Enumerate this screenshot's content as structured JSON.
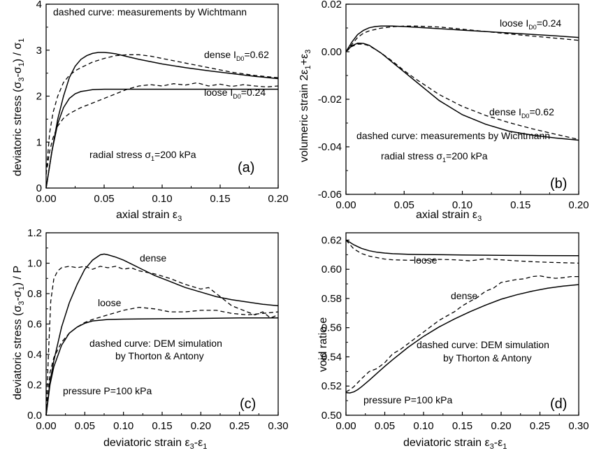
{
  "chart_data": [
    {
      "id": "a",
      "type": "line",
      "panel_label": "(a)",
      "xlabel": "axial strain ε₃",
      "ylabel": "deviatoric stress (σ₃-σ₁) / σ₁",
      "xlim": [
        0,
        0.2
      ],
      "ylim": [
        0,
        4
      ],
      "xticks": [
        "0.00",
        "0.05",
        "0.10",
        "0.15",
        "0.20"
      ],
      "yticks": [
        "0",
        "1",
        "2",
        "3",
        "4"
      ],
      "grid": false,
      "annotations": [
        "dashed curve:  measurements by Wichtmann",
        "dense I_D0=0.62",
        "loose I_D0=0.24",
        "radial stress σ₁=200 kPa"
      ],
      "series": [
        {
          "style": "solid",
          "x": [
            0,
            0.005,
            0.01,
            0.015,
            0.02,
            0.025,
            0.03,
            0.035,
            0.04,
            0.045,
            0.05,
            0.055,
            0.06,
            0.07,
            0.08,
            0.1,
            0.12,
            0.14,
            0.16,
            0.18,
            0.2
          ],
          "y": [
            0,
            0.8,
            1.5,
            2.0,
            2.4,
            2.65,
            2.8,
            2.88,
            2.93,
            2.95,
            2.95,
            2.94,
            2.92,
            2.86,
            2.8,
            2.7,
            2.62,
            2.55,
            2.49,
            2.43,
            2.38
          ]
        },
        {
          "style": "solid",
          "x": [
            0,
            0.005,
            0.01,
            0.015,
            0.02,
            0.025,
            0.03,
            0.035,
            0.04,
            0.05,
            0.06,
            0.08,
            0.1,
            0.15,
            0.2
          ],
          "y": [
            0,
            0.8,
            1.4,
            1.75,
            1.95,
            2.05,
            2.1,
            2.12,
            2.14,
            2.15,
            2.15,
            2.15,
            2.15,
            2.15,
            2.15
          ]
        },
        {
          "style": "dashed",
          "x": [
            0,
            0.003,
            0.006,
            0.01,
            0.015,
            0.02,
            0.025,
            0.03,
            0.035,
            0.04,
            0.05,
            0.06,
            0.07,
            0.08,
            0.09,
            0.1,
            0.12,
            0.14,
            0.16,
            0.18,
            0.2
          ],
          "y": [
            0.3,
            1.2,
            1.65,
            2.0,
            2.3,
            2.45,
            2.55,
            2.62,
            2.68,
            2.74,
            2.82,
            2.88,
            2.9,
            2.9,
            2.87,
            2.82,
            2.72,
            2.62,
            2.52,
            2.45,
            2.4
          ]
        },
        {
          "style": "dashed",
          "x": [
            0,
            0.003,
            0.006,
            0.01,
            0.015,
            0.02,
            0.03,
            0.04,
            0.05,
            0.06,
            0.07,
            0.08,
            0.09,
            0.1,
            0.11,
            0.12,
            0.13,
            0.14,
            0.15,
            0.16,
            0.17,
            0.18,
            0.19,
            0.2
          ],
          "y": [
            0.3,
            0.8,
            1.1,
            1.35,
            1.52,
            1.62,
            1.75,
            1.85,
            1.95,
            2.05,
            2.15,
            2.22,
            2.25,
            2.22,
            2.27,
            2.24,
            2.29,
            2.22,
            2.26,
            2.21,
            2.25,
            2.22,
            2.2,
            2.22
          ]
        }
      ]
    },
    {
      "id": "b",
      "type": "line",
      "panel_label": "(b)",
      "xlabel": "axial strain ε₃",
      "ylabel": "volumeric strain 2ε₁+ε₃",
      "xlim": [
        0,
        0.2
      ],
      "ylim": [
        -0.06,
        0.02
      ],
      "xticks": [
        "0.00",
        "0.05",
        "0.10",
        "0.15",
        "0.20"
      ],
      "yticks": [
        "-0.06",
        "-0.04",
        "-0.02",
        "0.00",
        "0.02"
      ],
      "grid": false,
      "annotations": [
        "loose I_D0=0.24",
        "dense I_D0=0.62",
        "dashed curve:  measurements by Wichtmann",
        "radial stress σ₁=200 kPa"
      ],
      "series": [
        {
          "style": "solid",
          "x": [
            0,
            0.005,
            0.01,
            0.015,
            0.02,
            0.025,
            0.03,
            0.04,
            0.05,
            0.06,
            0.08,
            0.1,
            0.12,
            0.14,
            0.16,
            0.18,
            0.2
          ],
          "y": [
            0,
            0.004,
            0.0072,
            0.009,
            0.0101,
            0.0106,
            0.0108,
            0.0108,
            0.0106,
            0.0103,
            0.0097,
            0.0091,
            0.0085,
            0.0079,
            0.0073,
            0.0067,
            0.006
          ]
        },
        {
          "style": "dashed",
          "x": [
            0,
            0.005,
            0.01,
            0.015,
            0.02,
            0.03,
            0.04,
            0.05,
            0.06,
            0.08,
            0.1,
            0.12,
            0.14,
            0.16,
            0.18,
            0.2
          ],
          "y": [
            0,
            0.003,
            0.006,
            0.0078,
            0.0088,
            0.0099,
            0.0105,
            0.0108,
            0.0108,
            0.0104,
            0.0095,
            0.0085,
            0.0075,
            0.0066,
            0.0057,
            0.0048
          ]
        },
        {
          "style": "solid",
          "x": [
            0,
            0.005,
            0.01,
            0.015,
            0.02,
            0.03,
            0.04,
            0.05,
            0.06,
            0.08,
            0.1,
            0.12,
            0.14,
            0.16,
            0.18,
            0.2
          ],
          "y": [
            0,
            0.0025,
            0.0036,
            0.0035,
            0.0027,
            -0.0005,
            -0.0045,
            -0.0085,
            -0.0125,
            -0.0205,
            -0.0265,
            -0.0305,
            -0.0334,
            -0.0351,
            -0.0363,
            -0.0372
          ]
        },
        {
          "style": "dashed",
          "x": [
            0,
            0.005,
            0.01,
            0.015,
            0.02,
            0.03,
            0.04,
            0.05,
            0.06,
            0.08,
            0.1,
            0.12,
            0.14,
            0.16,
            0.18,
            0.2
          ],
          "y": [
            0,
            0.0022,
            0.0032,
            0.0032,
            0.0025,
            -0.0005,
            -0.004,
            -0.008,
            -0.0115,
            -0.018,
            -0.023,
            -0.0268,
            -0.0298,
            -0.0324,
            -0.0347,
            -0.0369
          ]
        }
      ]
    },
    {
      "id": "c",
      "type": "line",
      "panel_label": "(c)",
      "xlabel": "deviatoric strain ε₃-ε₁",
      "ylabel": "deviatoric stress (σ₃-σ₁) / P",
      "xlim": [
        0,
        0.3
      ],
      "ylim": [
        0,
        1.2
      ],
      "xticks": [
        "0.00",
        "0.05",
        "0.10",
        "0.15",
        "0.20",
        "0.25",
        "0.30"
      ],
      "yticks": [
        "0.0",
        "0.2",
        "0.4",
        "0.6",
        "0.8",
        "1.0",
        "1.2"
      ],
      "grid": false,
      "annotations": [
        "dense",
        "loose",
        "dashed curve:  DEM simulation",
        "by Thorton & Antony",
        "pressure P=100 kPa"
      ],
      "series": [
        {
          "style": "solid",
          "x": [
            0,
            0.005,
            0.01,
            0.02,
            0.03,
            0.04,
            0.05,
            0.06,
            0.07,
            0.075,
            0.08,
            0.09,
            0.1,
            0.12,
            0.14,
            0.16,
            0.18,
            0.2,
            0.22,
            0.24,
            0.26,
            0.28,
            0.3
          ],
          "y": [
            0,
            0.22,
            0.36,
            0.58,
            0.74,
            0.86,
            0.96,
            1.02,
            1.055,
            1.06,
            1.055,
            1.04,
            1.02,
            0.97,
            0.92,
            0.88,
            0.84,
            0.81,
            0.78,
            0.76,
            0.745,
            0.73,
            0.72
          ]
        },
        {
          "style": "solid",
          "x": [
            0,
            0.005,
            0.01,
            0.02,
            0.03,
            0.04,
            0.05,
            0.06,
            0.08,
            0.1,
            0.15,
            0.2,
            0.25,
            0.3
          ],
          "y": [
            0,
            0.2,
            0.32,
            0.46,
            0.54,
            0.58,
            0.605,
            0.62,
            0.63,
            0.632,
            0.635,
            0.637,
            0.64,
            0.64
          ]
        },
        {
          "style": "dashed",
          "x": [
            0,
            0.003,
            0.006,
            0.01,
            0.015,
            0.02,
            0.03,
            0.04,
            0.05,
            0.06,
            0.07,
            0.08,
            0.09,
            0.1,
            0.11,
            0.12,
            0.14,
            0.16,
            0.18,
            0.2,
            0.21,
            0.22,
            0.24,
            0.26,
            0.27,
            0.28,
            0.29,
            0.3
          ],
          "y": [
            0,
            0.4,
            0.75,
            0.9,
            0.95,
            0.97,
            0.98,
            0.97,
            0.98,
            0.96,
            0.98,
            0.97,
            0.98,
            0.96,
            0.97,
            0.95,
            0.93,
            0.9,
            0.86,
            0.83,
            0.84,
            0.8,
            0.72,
            0.68,
            0.66,
            0.68,
            0.64,
            0.66
          ]
        },
        {
          "style": "dashed",
          "x": [
            0,
            0.005,
            0.01,
            0.02,
            0.03,
            0.04,
            0.05,
            0.06,
            0.08,
            0.1,
            0.12,
            0.14,
            0.16,
            0.18,
            0.2,
            0.22,
            0.24,
            0.26,
            0.28,
            0.3
          ],
          "y": [
            0,
            0.28,
            0.38,
            0.48,
            0.54,
            0.58,
            0.61,
            0.63,
            0.66,
            0.69,
            0.71,
            0.7,
            0.68,
            0.68,
            0.69,
            0.69,
            0.67,
            0.66,
            0.67,
            0.68
          ]
        }
      ]
    },
    {
      "id": "d",
      "type": "line",
      "panel_label": "(d)",
      "xlabel": "deviatoric strain ε₃-ε₁",
      "ylabel": "void ratio  e",
      "xlim": [
        0,
        0.3
      ],
      "ylim": [
        0.5,
        0.625
      ],
      "xticks": [
        "0.00",
        "0.05",
        "0.10",
        "0.15",
        "0.20",
        "0.25",
        "0.30"
      ],
      "yticks": [
        "0.50",
        "0.52",
        "0.54",
        "0.56",
        "0.58",
        "0.60",
        "0.62"
      ],
      "grid": false,
      "annotations": [
        "loose",
        "dense",
        "dashed curve:  DEM simulation",
        "by Thorton & Antony",
        "pressure P=100 kPa"
      ],
      "series": [
        {
          "style": "solid",
          "x": [
            0,
            0.005,
            0.01,
            0.02,
            0.03,
            0.04,
            0.05,
            0.06,
            0.08,
            0.1,
            0.15,
            0.2,
            0.25,
            0.3
          ],
          "y": [
            0.62,
            0.6185,
            0.6168,
            0.6143,
            0.6127,
            0.6117,
            0.6111,
            0.6107,
            0.6103,
            0.6101,
            0.6098,
            0.6096,
            0.6094,
            0.6093
          ]
        },
        {
          "style": "dashed",
          "x": [
            0,
            0.005,
            0.01,
            0.02,
            0.03,
            0.04,
            0.05,
            0.06,
            0.08,
            0.1,
            0.12,
            0.14,
            0.16,
            0.18,
            0.2,
            0.22,
            0.24,
            0.26,
            0.28,
            0.3
          ],
          "y": [
            0.62,
            0.617,
            0.614,
            0.6108,
            0.609,
            0.608,
            0.607,
            0.6065,
            0.6062,
            0.6062,
            0.6068,
            0.6065,
            0.6058,
            0.6072,
            0.6065,
            0.6058,
            0.6052,
            0.6048,
            0.6045,
            0.6042
          ]
        },
        {
          "style": "solid",
          "x": [
            0,
            0.005,
            0.01,
            0.015,
            0.02,
            0.03,
            0.04,
            0.05,
            0.06,
            0.08,
            0.1,
            0.12,
            0.14,
            0.16,
            0.18,
            0.2,
            0.22,
            0.24,
            0.26,
            0.28,
            0.3
          ],
          "y": [
            0.5155,
            0.5153,
            0.516,
            0.5175,
            0.5195,
            0.524,
            0.5288,
            0.5335,
            0.538,
            0.5465,
            0.554,
            0.5605,
            0.566,
            0.571,
            0.5755,
            0.5795,
            0.5825,
            0.585,
            0.587,
            0.5885,
            0.5895
          ]
        },
        {
          "style": "dashed",
          "x": [
            0,
            0.005,
            0.01,
            0.02,
            0.03,
            0.04,
            0.05,
            0.06,
            0.07,
            0.08,
            0.09,
            0.1,
            0.11,
            0.12,
            0.13,
            0.14,
            0.15,
            0.16,
            0.17,
            0.18,
            0.19,
            0.2,
            0.21,
            0.22,
            0.23,
            0.24,
            0.25,
            0.26,
            0.27,
            0.28,
            0.29,
            0.3
          ],
          "y": [
            0.516,
            0.5175,
            0.5195,
            0.525,
            0.53,
            0.532,
            0.536,
            0.542,
            0.545,
            0.549,
            0.553,
            0.557,
            0.561,
            0.565,
            0.568,
            0.571,
            0.575,
            0.578,
            0.581,
            0.585,
            0.587,
            0.591,
            0.592,
            0.593,
            0.5935,
            0.595,
            0.5955,
            0.5945,
            0.5938,
            0.5942,
            0.595,
            0.595
          ]
        }
      ]
    }
  ]
}
